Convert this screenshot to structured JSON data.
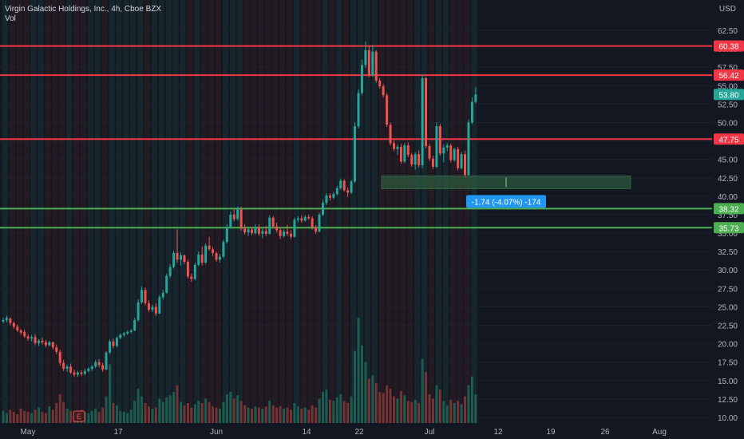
{
  "header": {
    "symbol_title": "Virgin Galactic Holdings, Inc., 4h, Cboe BZX",
    "volume_label": "Vol",
    "currency": "USD"
  },
  "colors": {
    "background": "#131722",
    "up": "#26a69a",
    "down": "#ef5350",
    "resistance_line": "#f23645",
    "support_line": "#4caf50",
    "grid": "#1e222d",
    "axis_text": "#b2b5be",
    "measure_box": "#2e5c3e",
    "measure_label_bg": "#2196f3"
  },
  "chart_data": {
    "type": "candlestick",
    "y_axis": {
      "min": 10,
      "max": 65,
      "tick_labels": [
        "62.50",
        "60.00",
        "57.50",
        "55.00",
        "52.50",
        "50.00",
        "47.50",
        "45.00",
        "42.50",
        "40.00",
        "37.50",
        "35.00",
        "32.50",
        "30.00",
        "27.50",
        "25.00",
        "22.50",
        "20.00",
        "17.50",
        "15.00",
        "12.50",
        "10.00"
      ]
    },
    "x_axis": {
      "tick_labels": [
        "May",
        "17",
        "Jun",
        "14",
        "22",
        "Jul",
        "12",
        "19",
        "26",
        "Aug"
      ]
    },
    "horizontal_levels": [
      {
        "price": 60.38,
        "label": "60.38",
        "kind": "resistance"
      },
      {
        "price": 56.42,
        "label": "56.42",
        "kind": "resistance"
      },
      {
        "price": 47.75,
        "label": "47.75",
        "kind": "resistance"
      },
      {
        "price": 38.32,
        "label": "38.32",
        "kind": "support"
      },
      {
        "price": 35.73,
        "label": "35.73",
        "kind": "support"
      }
    ],
    "last_price": {
      "value": 53.8,
      "label": "53.80"
    },
    "measurement": {
      "from": 42.76,
      "to": 41.02,
      "label": "-1.74 (-4.07%) -174"
    },
    "event_marker": "E",
    "candles": [
      [
        23,
        23.5,
        22.8,
        23.2
      ],
      [
        23.2,
        23.8,
        22.9,
        23.5
      ],
      [
        23.4,
        23.6,
        22.5,
        22.8
      ],
      [
        22.8,
        23,
        22,
        22.3
      ],
      [
        22.3,
        22.6,
        21.6,
        21.8
      ],
      [
        21.8,
        22,
        21.2,
        21.5
      ],
      [
        21.6,
        21.9,
        20.8,
        21
      ],
      [
        21,
        21.3,
        20.4,
        20.7
      ],
      [
        20.7,
        21.2,
        20.3,
        20.9
      ],
      [
        20.9,
        21.3,
        19.8,
        20.1
      ],
      [
        20.1,
        20.6,
        19.7,
        20.4
      ],
      [
        20.4,
        20.8,
        19.9,
        20.2
      ],
      [
        20.2,
        20.5,
        19.5,
        19.8
      ],
      [
        19.8,
        20.4,
        19.6,
        20.2
      ],
      [
        20.2,
        20.3,
        19.2,
        19.5
      ],
      [
        19.5,
        19.9,
        18.6,
        18.9
      ],
      [
        18.9,
        19.2,
        17,
        17.4
      ],
      [
        17.4,
        17.8,
        16.3,
        16.6
      ],
      [
        16.6,
        17.2,
        16.2,
        16.9
      ],
      [
        16.9,
        17.3,
        15.9,
        16.1
      ],
      [
        16.1,
        16.5,
        15.5,
        15.8
      ],
      [
        15.8,
        16.3,
        15.5,
        16.1
      ],
      [
        16.1,
        16.4,
        15.6,
        15.9
      ],
      [
        15.9,
        16.6,
        15.7,
        16.3
      ],
      [
        16.3,
        16.8,
        16.1,
        16.6
      ],
      [
        16.6,
        17.1,
        16.3,
        16.9
      ],
      [
        16.9,
        17.8,
        16.7,
        17.5
      ],
      [
        17.5,
        17.9,
        16.8,
        17.1
      ],
      [
        17.1,
        17.4,
        16.2,
        16.5
      ],
      [
        16.5,
        19,
        16.4,
        18.8
      ],
      [
        18.8,
        20.6,
        18.6,
        20.3
      ],
      [
        20.3,
        20.7,
        19.4,
        19.7
      ],
      [
        19.7,
        21,
        19.5,
        20.8
      ],
      [
        20.8,
        21.4,
        20.6,
        21.2
      ],
      [
        21.2,
        21.6,
        20.9,
        21.4
      ],
      [
        21.4,
        21.8,
        21.2,
        21.6
      ],
      [
        21.6,
        22,
        21.4,
        21.8
      ],
      [
        21.8,
        23.5,
        21.7,
        23.2
      ],
      [
        23.2,
        26,
        23,
        25.6
      ],
      [
        25.6,
        27.8,
        25.4,
        27.3
      ],
      [
        27.3,
        27.6,
        25.2,
        25.5
      ],
      [
        25.5,
        25.9,
        24.3,
        24.6
      ],
      [
        24.6,
        25.3,
        24.3,
        25
      ],
      [
        25,
        25.5,
        23.8,
        24.1
      ],
      [
        24.1,
        26.6,
        24,
        26.3
      ],
      [
        26.3,
        27.3,
        26,
        26.9
      ],
      [
        26.9,
        29.5,
        26.8,
        29.2
      ],
      [
        29.2,
        30.8,
        28.9,
        30.4
      ],
      [
        30.4,
        32.6,
        30.2,
        32.3
      ],
      [
        32.3,
        35.5,
        31,
        31.4
      ],
      [
        31.4,
        32.4,
        30.6,
        32
      ],
      [
        32,
        32.1,
        30.8,
        31.1
      ],
      [
        31.1,
        31.4,
        28.8,
        29.1
      ],
      [
        29.1,
        29.5,
        28.4,
        28.8
      ],
      [
        28.8,
        31,
        28.6,
        30.7
      ],
      [
        30.7,
        32.5,
        30.5,
        32.1
      ],
      [
        32.1,
        33.2,
        30.6,
        31
      ],
      [
        31,
        33.6,
        30.8,
        33.3
      ],
      [
        33.3,
        34.5,
        32.6,
        32.8
      ],
      [
        32.8,
        33.1,
        31.9,
        32.3
      ],
      [
        32.3,
        32.5,
        31.1,
        31.4
      ],
      [
        31.4,
        32.2,
        31,
        31.8
      ],
      [
        31.8,
        34.1,
        31.6,
        33.8
      ],
      [
        33.8,
        36.2,
        33.6,
        35.8
      ],
      [
        35.8,
        37.9,
        35.6,
        37.5
      ],
      [
        37.5,
        38.3,
        36.6,
        36.9
      ],
      [
        36.9,
        38.6,
        36.7,
        38.2
      ],
      [
        38.2,
        38.6,
        35.3,
        35.6
      ],
      [
        35.6,
        36.2,
        34.8,
        35.1
      ],
      [
        35.1,
        35.9,
        34.6,
        35.5
      ],
      [
        35.5,
        35.8,
        34.7,
        35
      ],
      [
        35,
        36.2,
        34.8,
        35.8
      ],
      [
        35.8,
        36.2,
        34.6,
        34.9
      ],
      [
        34.9,
        35.6,
        34.3,
        35.3
      ],
      [
        35.3,
        36,
        34.6,
        34.9
      ],
      [
        34.9,
        37.4,
        34.8,
        37.1
      ],
      [
        37.1,
        37.3,
        35.6,
        35.9
      ],
      [
        35.9,
        36.4,
        35.1,
        35.4
      ],
      [
        35.4,
        35.7,
        34.2,
        34.6
      ],
      [
        34.6,
        35.5,
        34.4,
        35.2
      ],
      [
        35.2,
        36.1,
        34.6,
        34.9
      ],
      [
        34.9,
        35.4,
        34.2,
        34.5
      ],
      [
        34.5,
        37.1,
        34.4,
        36.8
      ],
      [
        36.8,
        37.3,
        36.5,
        37
      ],
      [
        37,
        37.4,
        36.4,
        36.7
      ],
      [
        36.7,
        37.4,
        36.5,
        37.2
      ],
      [
        37.2,
        37.5,
        36.8,
        37
      ],
      [
        37,
        37.3,
        35.5,
        35.8
      ],
      [
        35.8,
        36.1,
        34.9,
        35.2
      ],
      [
        35.2,
        37.8,
        35.1,
        37.5
      ],
      [
        37.5,
        39.5,
        37.3,
        39.1
      ],
      [
        39.1,
        40.4,
        38.8,
        40.1
      ],
      [
        40.1,
        40.4,
        39.4,
        39.8
      ],
      [
        39.8,
        40.6,
        39.6,
        40.3
      ],
      [
        40.3,
        41.4,
        40.1,
        41.1
      ],
      [
        41.1,
        42.4,
        40.9,
        42.1
      ],
      [
        42.1,
        42.3,
        40.6,
        40.8
      ],
      [
        40.8,
        41.2,
        39.9,
        40.5
      ],
      [
        40.5,
        42.2,
        40.3,
        42
      ],
      [
        42,
        50,
        41.8,
        49.5
      ],
      [
        49.5,
        54.5,
        49.2,
        54
      ],
      [
        54,
        58.5,
        53.7,
        57.8
      ],
      [
        57.8,
        61,
        57.4,
        59.8
      ],
      [
        59.8,
        60.4,
        56.1,
        56.4
      ],
      [
        56.4,
        60.5,
        56.2,
        59.6
      ],
      [
        59.6,
        59.8,
        55.4,
        55.7
      ],
      [
        55.7,
        56,
        54.6,
        54.9
      ],
      [
        54.9,
        55.2,
        53.4,
        53.7
      ],
      [
        53.7,
        54,
        49.4,
        49.7
      ],
      [
        49.7,
        50,
        46.9,
        47.2
      ],
      [
        47.2,
        47.6,
        46.1,
        46.4
      ],
      [
        46.4,
        47,
        45.6,
        46.7
      ],
      [
        46.7,
        47.1,
        44.4,
        44.7
      ],
      [
        44.7,
        47.2,
        44.5,
        46.9
      ],
      [
        46.9,
        47.3,
        45.3,
        45.6
      ],
      [
        45.6,
        45.9,
        44,
        44.3
      ],
      [
        44.3,
        46,
        43.6,
        45.7
      ],
      [
        45.7,
        46.2,
        43.9,
        44.2
      ],
      [
        44.2,
        56.5,
        43.8,
        56
      ],
      [
        56,
        56.2,
        46.5,
        46.8
      ],
      [
        46.8,
        47.1,
        44.8,
        45.1
      ],
      [
        45.1,
        45.5,
        43.7,
        44
      ],
      [
        44,
        50,
        43.8,
        49.5
      ],
      [
        49.5,
        49.8,
        45.5,
        45.8
      ],
      [
        45.8,
        47,
        44.6,
        46.6
      ],
      [
        46.6,
        47.2,
        46.1,
        46.9
      ],
      [
        46.9,
        47.1,
        44.6,
        44.9
      ],
      [
        44.9,
        46.6,
        44.7,
        46.4
      ],
      [
        46.4,
        46.7,
        43.5,
        43.8
      ],
      [
        43.8,
        46,
        43.6,
        45.7
      ],
      [
        45.7,
        46.2,
        42.6,
        42.9
      ],
      [
        42.9,
        50.4,
        42.7,
        50
      ],
      [
        50,
        53.4,
        49.8,
        52.8
      ],
      [
        52.8,
        54.8,
        52.6,
        53.8
      ]
    ],
    "volume": [
      1.1,
      0.9,
      1.2,
      1.0,
      0.8,
      1.3,
      1.1,
      1.0,
      0.9,
      1.2,
      1.4,
      1.0,
      0.9,
      1.5,
      1.2,
      1.8,
      2.6,
      1.9,
      1.3,
      1.1,
      1.0,
      0.9,
      1.2,
      1.0,
      0.9,
      1.1,
      1.3,
      1.0,
      1.4,
      2.4,
      5.3,
      1.8,
      1.6,
      1.1,
      1.0,
      0.9,
      1.2,
      2.0,
      3.1,
      2.4,
      1.8,
      1.5,
      1.3,
      1.4,
      2.2,
      1.9,
      2.3,
      2.5,
      2.8,
      3.4,
      1.9,
      1.6,
      1.8,
      1.4,
      1.7,
      2.0,
      1.8,
      2.2,
      1.9,
      1.5,
      1.4,
      1.3,
      1.9,
      2.6,
      2.8,
      2.2,
      2.5,
      2.0,
      1.6,
      1.4,
      1.3,
      1.5,
      1.4,
      1.3,
      1.5,
      2.0,
      1.6,
      1.4,
      1.5,
      1.3,
      1.4,
      1.2,
      1.8,
      1.5,
      1.3,
      1.4,
      1.2,
      1.6,
      1.4,
      2.2,
      2.8,
      3.0,
      2.1,
      2.0,
      2.3,
      2.6,
      2.0,
      1.8,
      2.4,
      6.5,
      9.5,
      7.0,
      5.5,
      4.0,
      4.3,
      3.6,
      2.8,
      2.7,
      3.4,
      3.1,
      2.4,
      2.2,
      2.9,
      2.5,
      2.0,
      1.9,
      2.1,
      1.8,
      5.8,
      4.6,
      2.6,
      2.2,
      3.4,
      3.0,
      2.0,
      1.6,
      2.1,
      1.8,
      2.0,
      1.7,
      2.4,
      3.4,
      4.2,
      2.6
    ]
  }
}
